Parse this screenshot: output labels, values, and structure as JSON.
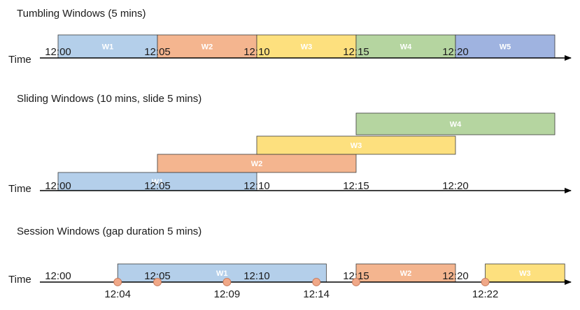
{
  "colors": {
    "W1": "#b4cfea",
    "W2": "#f4b58f",
    "W3": "#fde07e",
    "W4": "#b5d5a0",
    "W5": "#9fb3e0",
    "stroke": "#3a3a3a",
    "event_dot": "#f0a888",
    "axis": "#000000"
  },
  "tumbling": {
    "title": "Tumbling Windows (5 mins)",
    "axis_label": "Time",
    "ticks": [
      "12:00",
      "12:05",
      "12:10",
      "12:15",
      "12:20"
    ],
    "windows": [
      {
        "label": "W1",
        "start": 0,
        "end": 5,
        "color": "W1"
      },
      {
        "label": "W2",
        "start": 5,
        "end": 10,
        "color": "W2"
      },
      {
        "label": "W3",
        "start": 10,
        "end": 15,
        "color": "W3"
      },
      {
        "label": "W4",
        "start": 15,
        "end": 20,
        "color": "W4"
      },
      {
        "label": "W5",
        "start": 20,
        "end": 25,
        "color": "W5"
      }
    ]
  },
  "sliding": {
    "title": "Sliding Windows (10 mins, slide 5 mins)",
    "axis_label": "Time",
    "ticks": [
      "12:00",
      "12:05",
      "12:10",
      "12:15",
      "12:20"
    ],
    "windows": [
      {
        "label": "W1",
        "start": 0,
        "end": 10,
        "color": "W1"
      },
      {
        "label": "W2",
        "start": 5,
        "end": 15,
        "color": "W2"
      },
      {
        "label": "W3",
        "start": 10,
        "end": 20,
        "color": "W3"
      },
      {
        "label": "W4",
        "start": 15,
        "end": 25,
        "color": "W4"
      }
    ]
  },
  "session": {
    "title": "Session Windows (gap duration 5 mins)",
    "axis_label": "Time",
    "ticks": [
      "12:00",
      "12:05",
      "12:10",
      "12:15",
      "12:20"
    ],
    "windows": [
      {
        "label": "W1",
        "start": 3,
        "end": 13.5,
        "color": "W1"
      },
      {
        "label": "W2",
        "start": 15,
        "end": 20,
        "color": "W2"
      },
      {
        "label": "W3",
        "start": 21.5,
        "end": 25.5,
        "color": "W3"
      }
    ],
    "events": [
      {
        "label": "12:04",
        "t": 3
      },
      {
        "label": "",
        "t": 5
      },
      {
        "label": "12:09",
        "t": 8.5
      },
      {
        "label": "12:14",
        "t": 13
      },
      {
        "label": "",
        "t": 15
      },
      {
        "label": "12:22",
        "t": 21.5
      }
    ]
  }
}
